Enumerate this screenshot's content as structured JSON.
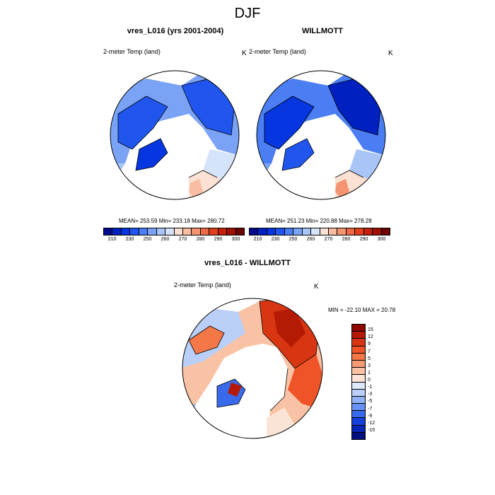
{
  "main_title": "DJF",
  "panels": [
    {
      "title": "vres_L016 (yrs 2001-2004)",
      "var_label": "2-meter Temp (land)",
      "unit": "K",
      "stats": "MEAN= 253.59  Min= 233.18  Max= 280.72"
    },
    {
      "title": "WILLMOTT",
      "var_label": "2-meter Temp (land)",
      "unit": "K",
      "stats": "MEAN= 251.23  Min= 220.88  Max= 278.28"
    }
  ],
  "diff_panel": {
    "title": "vres_L016 - WILLMOTT",
    "var_label": "2-meter Temp (land)",
    "unit": "K",
    "stats": "MIN = -22.10 MAX =  20.78"
  },
  "abs_colorbar": {
    "ticks": [
      "210",
      "230",
      "250",
      "260",
      "270",
      "280",
      "290",
      "300"
    ],
    "colors": [
      "#000b8c",
      "#0020c0",
      "#0536e0",
      "#2156ee",
      "#4b7ef3",
      "#7aa3f6",
      "#a9c5f8",
      "#d5e4fb",
      "#fbe1d3",
      "#f9bda1",
      "#f49470",
      "#ec6a44",
      "#df3f1c",
      "#c4200b",
      "#9e1003",
      "#6b0400"
    ]
  },
  "diff_colorbar": {
    "ticks": [
      "15",
      "12",
      "9",
      "7",
      "5",
      "3",
      "1",
      "0",
      "-1",
      "-3",
      "-5",
      "-7",
      "-9",
      "-12",
      "-15"
    ],
    "colors": [
      "#8c0a00",
      "#b51a05",
      "#d83612",
      "#ee5428",
      "#f47748",
      "#f79c72",
      "#f9c2a4",
      "#fbe4d6",
      "#dde8fb",
      "#b9cff8",
      "#90b2f5",
      "#6690f1",
      "#3a6aec",
      "#1540db",
      "#0525b5",
      "#00107e"
    ]
  }
}
